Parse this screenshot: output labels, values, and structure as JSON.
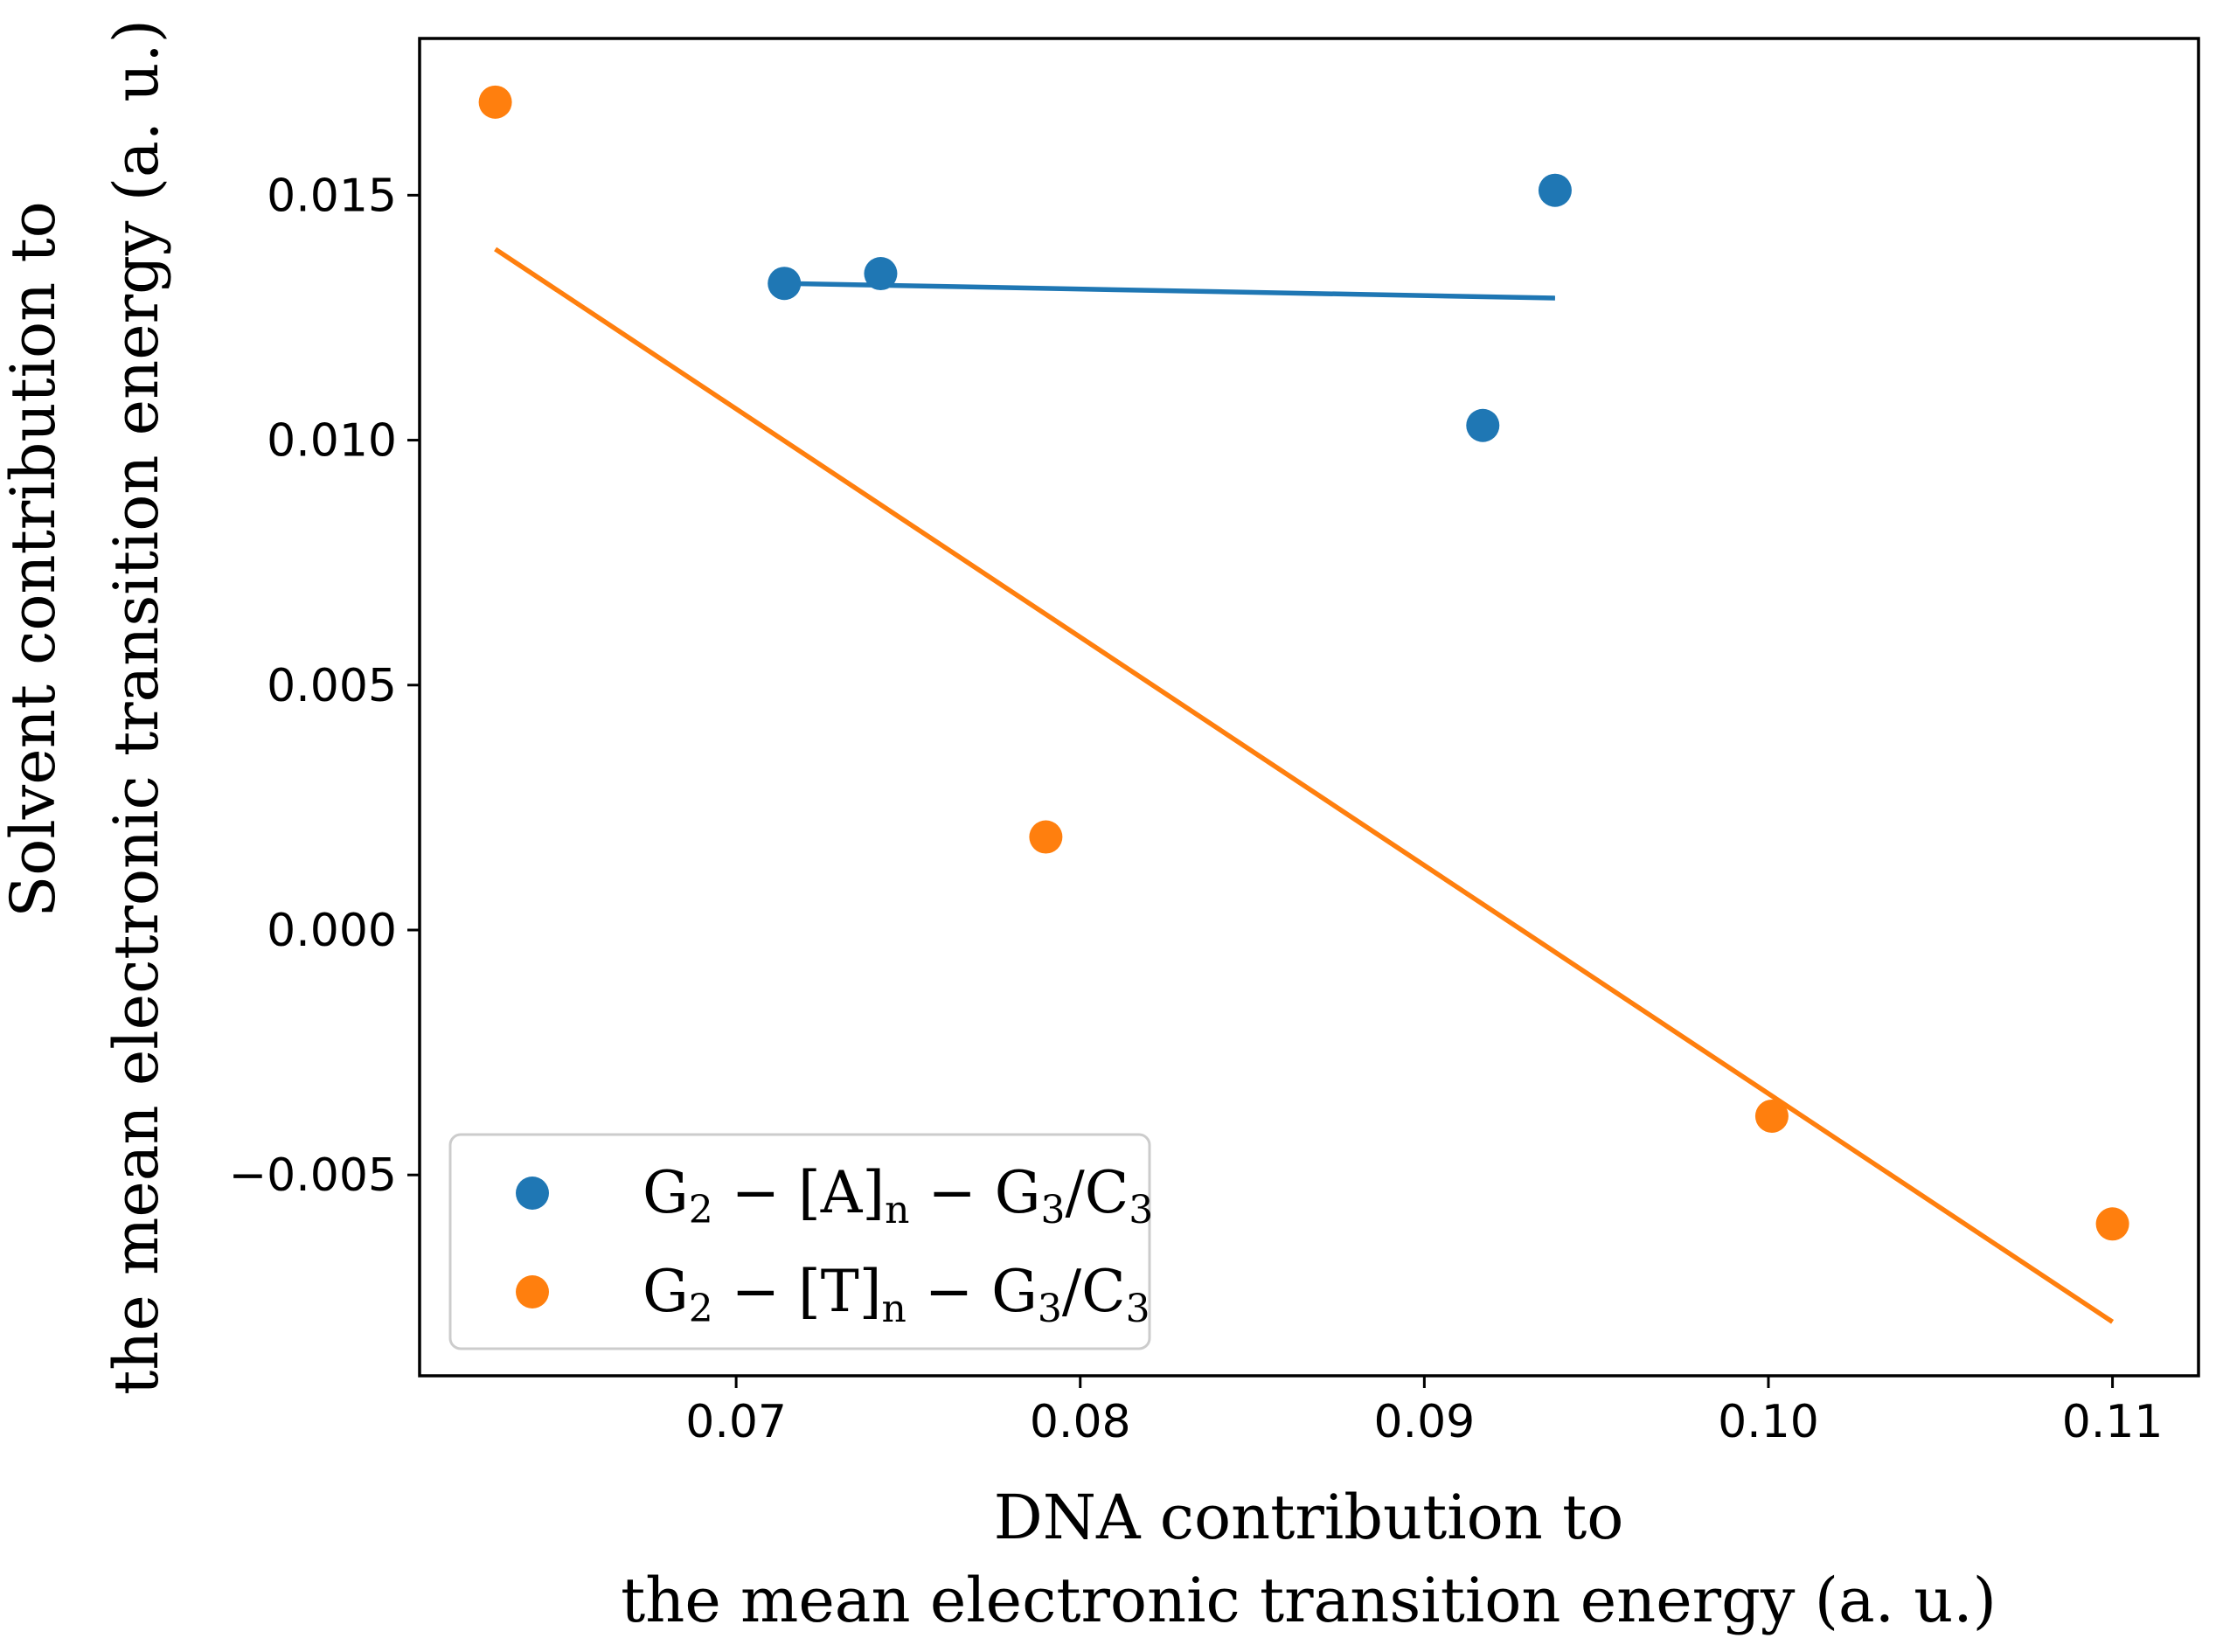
{
  "chart_data": {
    "type": "scatter",
    "title": "",
    "xlabel": [
      "DNA contribution to",
      "the mean electronic transition energy (a. u.)"
    ],
    "ylabel": [
      "Solvent contribution to",
      "the mean electronic transition energy (a. u.)"
    ],
    "xlim": [
      0.0608,
      0.1125
    ],
    "ylim": [
      -0.0091,
      0.0182
    ],
    "xticks": [
      0.07,
      0.08,
      0.09,
      0.1,
      0.11
    ],
    "xtick_labels": [
      "0.07",
      "0.08",
      "0.09",
      "0.10",
      "0.11"
    ],
    "yticks": [
      -0.005,
      0.0,
      0.005,
      0.01,
      0.015
    ],
    "ytick_labels": [
      "−0.005",
      "0.000",
      "0.005",
      "0.010",
      "0.015"
    ],
    "grid": false,
    "legend_position": "lower-left",
    "series": [
      {
        "name": "G2 − [A]n − G3/C3",
        "legend": {
          "g1": "G",
          "s1": "2",
          "mid": " − [A]",
          "s2": "n",
          "tail": " − G",
          "s3": "3",
          "slash": "/C",
          "s4": "3"
        },
        "color": "#1f77b4",
        "points": [
          {
            "x": 0.0714,
            "y": 0.0132
          },
          {
            "x": 0.0742,
            "y": 0.0134
          },
          {
            "x": 0.0917,
            "y": 0.0103
          },
          {
            "x": 0.0938,
            "y": 0.0151
          }
        ],
        "fit": {
          "x": [
            0.0714,
            0.0938
          ],
          "y": [
            0.0132,
            0.0129
          ]
        }
      },
      {
        "name": "G2 − [T]n − G3/C3",
        "legend": {
          "g1": "G",
          "s1": "2",
          "mid": " − [T]",
          "s2": "n",
          "tail": " − G",
          "s3": "3",
          "slash": "/C",
          "s4": "3"
        },
        "color": "#ff7f0e",
        "points": [
          {
            "x": 0.063,
            "y": 0.0169
          },
          {
            "x": 0.079,
            "y": 0.0019
          },
          {
            "x": 0.1001,
            "y": -0.0038
          },
          {
            "x": 0.11,
            "y": -0.006
          }
        ],
        "fit": {
          "x": [
            0.063,
            0.11
          ],
          "y": [
            0.0139,
            -0.008
          ]
        }
      }
    ]
  }
}
